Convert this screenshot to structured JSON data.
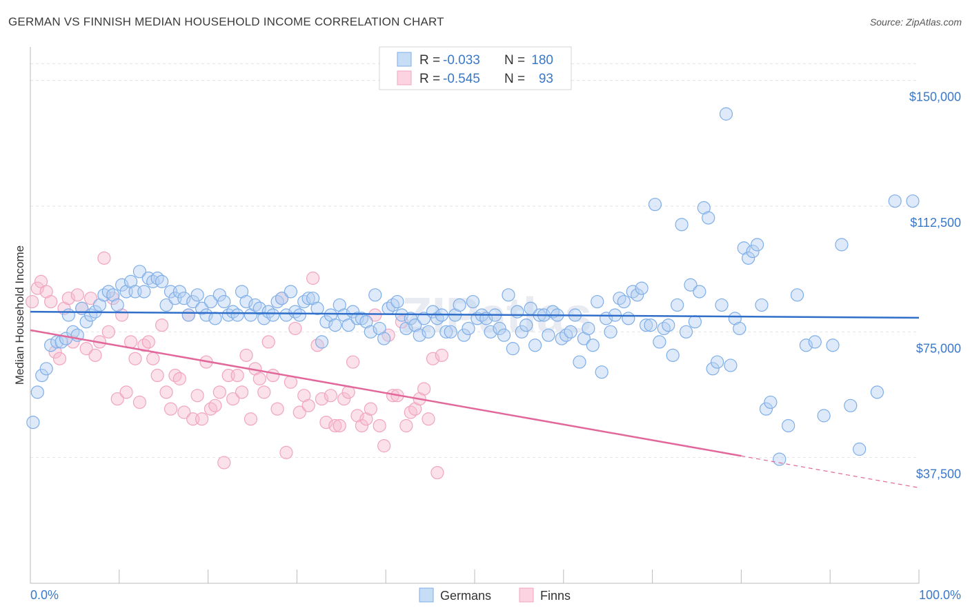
{
  "title": "GERMAN VS FINNISH MEDIAN HOUSEHOLD INCOME CORRELATION CHART",
  "source": "Source: ZipAtlas.com",
  "watermark": "ZIPatlas",
  "chart_data": {
    "type": "scatter",
    "ylabel": "Median Household Income",
    "xlim": [
      0,
      100
    ],
    "ylim": [
      0,
      160000
    ],
    "x_tick_labels": [
      "0.0%",
      "100.0%"
    ],
    "y_ticks": [
      37500,
      75000,
      112500,
      150000
    ],
    "y_tick_labels": [
      "$37,500",
      "$75,000",
      "$112,500",
      "$150,000"
    ],
    "grid": "horizontal dashed",
    "legend_position": "top-center",
    "legend": [
      {
        "r_label": "R =",
        "r_value": "-0.033",
        "n_label": "N =",
        "n_value": "180"
      },
      {
        "r_label": "R =",
        "r_value": "-0.545",
        "n_label": "N =",
        "n_value": "93"
      }
    ],
    "series": [
      {
        "name": "Germans",
        "color": "#7eaee8",
        "line_color": "#2f6fc9",
        "trend": {
          "x": [
            0,
            100
          ],
          "y": [
            81000,
            79200
          ]
        },
        "points": [
          [
            0.3,
            48000
          ],
          [
            0.8,
            57000
          ],
          [
            1.3,
            62000
          ],
          [
            1.8,
            64000
          ],
          [
            2.3,
            71000
          ],
          [
            3.0,
            72000
          ],
          [
            3.5,
            72000
          ],
          [
            4.0,
            73000
          ],
          [
            4.3,
            80000
          ],
          [
            4.8,
            75000
          ],
          [
            5.3,
            74000
          ],
          [
            5.8,
            82000
          ],
          [
            6.3,
            78000
          ],
          [
            6.8,
            80000
          ],
          [
            7.3,
            81000
          ],
          [
            7.8,
            83000
          ],
          [
            8.3,
            86000
          ],
          [
            8.8,
            87000
          ],
          [
            9.3,
            86000
          ],
          [
            9.8,
            83000
          ],
          [
            10.3,
            89000
          ],
          [
            10.8,
            87000
          ],
          [
            11.3,
            90000
          ],
          [
            11.8,
            87000
          ],
          [
            12.3,
            93000
          ],
          [
            12.8,
            87000
          ],
          [
            13.3,
            91000
          ],
          [
            13.8,
            90000
          ],
          [
            14.3,
            91000
          ],
          [
            14.8,
            90000
          ],
          [
            15.3,
            83000
          ],
          [
            15.8,
            87000
          ],
          [
            16.3,
            85000
          ],
          [
            16.8,
            87000
          ],
          [
            17.3,
            85000
          ],
          [
            17.8,
            80000
          ],
          [
            18.3,
            84000
          ],
          [
            18.8,
            86000
          ],
          [
            19.3,
            82000
          ],
          [
            19.8,
            80000
          ],
          [
            20.3,
            84000
          ],
          [
            20.8,
            79000
          ],
          [
            21.3,
            86000
          ],
          [
            21.8,
            84000
          ],
          [
            22.3,
            80000
          ],
          [
            22.8,
            81000
          ],
          [
            23.3,
            80000
          ],
          [
            23.8,
            87000
          ],
          [
            24.3,
            84000
          ],
          [
            24.8,
            80000
          ],
          [
            25.3,
            83000
          ],
          [
            25.8,
            82000
          ],
          [
            26.3,
            79000
          ],
          [
            26.8,
            81000
          ],
          [
            27.3,
            80000
          ],
          [
            27.8,
            84000
          ],
          [
            28.3,
            85000
          ],
          [
            28.8,
            80000
          ],
          [
            29.3,
            87000
          ],
          [
            29.8,
            81000
          ],
          [
            30.3,
            80000
          ],
          [
            30.8,
            84000
          ],
          [
            31.3,
            85000
          ],
          [
            31.8,
            85000
          ],
          [
            32.3,
            82000
          ],
          [
            32.8,
            72000
          ],
          [
            33.3,
            78000
          ],
          [
            33.8,
            80000
          ],
          [
            34.3,
            77000
          ],
          [
            34.8,
            83000
          ],
          [
            35.3,
            80000
          ],
          [
            35.8,
            77000
          ],
          [
            36.3,
            81000
          ],
          [
            36.8,
            79000
          ],
          [
            37.3,
            79000
          ],
          [
            37.8,
            78000
          ],
          [
            38.3,
            75000
          ],
          [
            38.8,
            86000
          ],
          [
            39.3,
            76000
          ],
          [
            39.8,
            73000
          ],
          [
            40.3,
            82000
          ],
          [
            40.8,
            83000
          ],
          [
            41.3,
            84000
          ],
          [
            41.8,
            80000
          ],
          [
            42.3,
            76000
          ],
          [
            42.8,
            79000
          ],
          [
            43.3,
            77000
          ],
          [
            43.8,
            74000
          ],
          [
            44.3,
            79000
          ],
          [
            44.8,
            75000
          ],
          [
            45.3,
            81000
          ],
          [
            45.8,
            79000
          ],
          [
            46.3,
            80000
          ],
          [
            46.8,
            75000
          ],
          [
            47.3,
            75000
          ],
          [
            47.8,
            80000
          ],
          [
            48.3,
            83000
          ],
          [
            48.8,
            74000
          ],
          [
            49.3,
            76000
          ],
          [
            49.8,
            84000
          ],
          [
            50.3,
            79000
          ],
          [
            50.8,
            80000
          ],
          [
            51.3,
            79000
          ],
          [
            51.8,
            75000
          ],
          [
            52.3,
            80000
          ],
          [
            52.8,
            76000
          ],
          [
            53.3,
            74000
          ],
          [
            53.8,
            86000
          ],
          [
            54.3,
            70000
          ],
          [
            54.8,
            81000
          ],
          [
            55.3,
            75000
          ],
          [
            55.8,
            77000
          ],
          [
            56.3,
            82000
          ],
          [
            56.8,
            71000
          ],
          [
            57.3,
            80000
          ],
          [
            57.8,
            80000
          ],
          [
            58.3,
            74000
          ],
          [
            58.8,
            81000
          ],
          [
            59.3,
            80000
          ],
          [
            59.8,
            73000
          ],
          [
            60.3,
            74000
          ],
          [
            60.8,
            75000
          ],
          [
            61.3,
            80000
          ],
          [
            61.8,
            66000
          ],
          [
            62.3,
            73000
          ],
          [
            62.8,
            76000
          ],
          [
            63.3,
            71000
          ],
          [
            63.8,
            84000
          ],
          [
            64.3,
            63000
          ],
          [
            64.8,
            79000
          ],
          [
            65.3,
            75000
          ],
          [
            65.8,
            80000
          ],
          [
            66.3,
            85000
          ],
          [
            66.8,
            84000
          ],
          [
            67.3,
            79000
          ],
          [
            67.8,
            87000
          ],
          [
            68.3,
            86000
          ],
          [
            68.8,
            88000
          ],
          [
            69.3,
            77000
          ],
          [
            69.8,
            77000
          ],
          [
            70.3,
            113000
          ],
          [
            70.8,
            72000
          ],
          [
            71.3,
            76000
          ],
          [
            71.8,
            77000
          ],
          [
            72.3,
            68000
          ],
          [
            72.8,
            83000
          ],
          [
            73.3,
            107000
          ],
          [
            73.8,
            75000
          ],
          [
            74.3,
            89000
          ],
          [
            74.8,
            78000
          ],
          [
            75.3,
            87000
          ],
          [
            75.8,
            112000
          ],
          [
            76.3,
            109000
          ],
          [
            76.8,
            64000
          ],
          [
            77.3,
            66000
          ],
          [
            77.8,
            83000
          ],
          [
            78.3,
            140000
          ],
          [
            78.8,
            65000
          ],
          [
            79.3,
            79000
          ],
          [
            79.8,
            76000
          ],
          [
            80.3,
            100000
          ],
          [
            80.8,
            97000
          ],
          [
            81.3,
            99000
          ],
          [
            81.8,
            101000
          ],
          [
            82.3,
            83000
          ],
          [
            82.8,
            52000
          ],
          [
            83.3,
            54000
          ],
          [
            84.3,
            37000
          ],
          [
            85.3,
            47000
          ],
          [
            86.3,
            86000
          ],
          [
            87.3,
            71000
          ],
          [
            88.3,
            72000
          ],
          [
            89.3,
            50000
          ],
          [
            90.3,
            71000
          ],
          [
            91.3,
            101000
          ],
          [
            92.3,
            53000
          ],
          [
            93.3,
            40000
          ],
          [
            95.3,
            57000
          ],
          [
            97.3,
            114000
          ],
          [
            99.3,
            114000
          ]
        ]
      },
      {
        "name": "Finns",
        "color": "#f1a4c0",
        "line_color": "#e2679a",
        "trend": {
          "x": [
            0,
            80
          ],
          "y": [
            75500,
            38000
          ]
        },
        "trend_dashed_to": {
          "x": 100,
          "y": 28500
        },
        "points": [
          [
            0.2,
            84000
          ],
          [
            0.8,
            88000
          ],
          [
            1.2,
            90000
          ],
          [
            1.8,
            87000
          ],
          [
            2.3,
            84000
          ],
          [
            2.8,
            69000
          ],
          [
            3.3,
            67000
          ],
          [
            3.8,
            82000
          ],
          [
            4.3,
            85000
          ],
          [
            4.8,
            72000
          ],
          [
            5.3,
            86000
          ],
          [
            5.8,
            82000
          ],
          [
            6.3,
            70000
          ],
          [
            6.8,
            85000
          ],
          [
            7.3,
            68000
          ],
          [
            7.8,
            72000
          ],
          [
            8.3,
            97000
          ],
          [
            8.8,
            75000
          ],
          [
            9.3,
            85000
          ],
          [
            9.8,
            55000
          ],
          [
            10.3,
            80000
          ],
          [
            10.8,
            57000
          ],
          [
            11.3,
            72000
          ],
          [
            11.8,
            67000
          ],
          [
            12.3,
            54000
          ],
          [
            12.8,
            71000
          ],
          [
            13.3,
            72000
          ],
          [
            13.8,
            67000
          ],
          [
            14.3,
            62000
          ],
          [
            14.8,
            77000
          ],
          [
            15.3,
            57000
          ],
          [
            15.8,
            52000
          ],
          [
            16.3,
            62000
          ],
          [
            16.8,
            61000
          ],
          [
            17.3,
            51000
          ],
          [
            17.8,
            80000
          ],
          [
            18.3,
            49000
          ],
          [
            18.8,
            56000
          ],
          [
            19.3,
            49000
          ],
          [
            19.8,
            66000
          ],
          [
            20.3,
            52000
          ],
          [
            20.8,
            53000
          ],
          [
            21.3,
            57000
          ],
          [
            21.8,
            36000
          ],
          [
            22.3,
            62000
          ],
          [
            22.8,
            55000
          ],
          [
            23.3,
            62000
          ],
          [
            23.8,
            57000
          ],
          [
            24.3,
            68000
          ],
          [
            24.8,
            49000
          ],
          [
            25.3,
            64000
          ],
          [
            25.8,
            61000
          ],
          [
            26.3,
            57000
          ],
          [
            26.8,
            72000
          ],
          [
            27.3,
            62000
          ],
          [
            27.8,
            52000
          ],
          [
            28.3,
            85000
          ],
          [
            28.8,
            39000
          ],
          [
            29.3,
            60000
          ],
          [
            29.8,
            76000
          ],
          [
            30.3,
            51000
          ],
          [
            30.8,
            56000
          ],
          [
            31.3,
            53000
          ],
          [
            31.8,
            91000
          ],
          [
            32.3,
            71000
          ],
          [
            32.8,
            55000
          ],
          [
            33.3,
            48000
          ],
          [
            33.8,
            56000
          ],
          [
            34.3,
            47000
          ],
          [
            34.8,
            47000
          ],
          [
            35.3,
            55000
          ],
          [
            35.8,
            57000
          ],
          [
            36.3,
            66000
          ],
          [
            36.8,
            50000
          ],
          [
            37.3,
            47000
          ],
          [
            37.8,
            49000
          ],
          [
            38.3,
            52000
          ],
          [
            38.8,
            80000
          ],
          [
            39.3,
            47000
          ],
          [
            39.8,
            41000
          ],
          [
            40.3,
            74000
          ],
          [
            40.8,
            56000
          ],
          [
            41.3,
            56000
          ],
          [
            41.8,
            78000
          ],
          [
            42.3,
            47000
          ],
          [
            42.8,
            51000
          ],
          [
            43.3,
            52000
          ],
          [
            43.8,
            55000
          ],
          [
            44.3,
            58000
          ],
          [
            44.8,
            49000
          ],
          [
            45.3,
            67000
          ],
          [
            45.8,
            33000
          ],
          [
            46.3,
            68000
          ]
        ]
      }
    ]
  },
  "bottom_legend": [
    "Germans",
    "Finns"
  ]
}
